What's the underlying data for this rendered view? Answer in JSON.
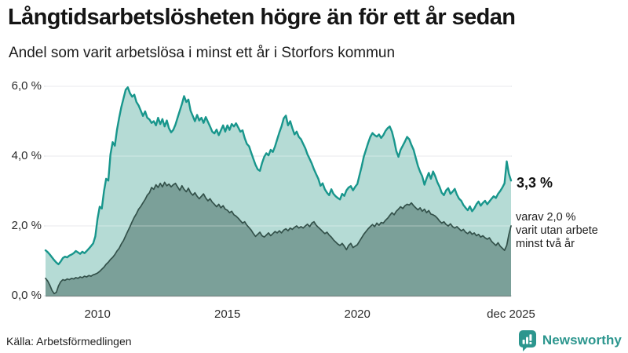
{
  "chart_data": {
    "type": "area",
    "title": "Långtidsarbetslösheten högre än för ett år sedan",
    "subtitle": "Andel som varit arbetslösa i minst ett år i Storfors kommun",
    "unit": "%",
    "x_start_year": 2008,
    "x_end_label": "dec 2025",
    "ylim": [
      0,
      6
    ],
    "grid": true,
    "yticks": [
      {
        "value": 0,
        "label": "0,0 %"
      },
      {
        "value": 2,
        "label": "2,0 %"
      },
      {
        "value": 4,
        "label": "4,0 %"
      },
      {
        "value": 6,
        "label": "6,0 %"
      }
    ],
    "xticks": [
      {
        "label": "2010",
        "month_index": 24
      },
      {
        "label": "2015",
        "month_index": 84
      },
      {
        "label": "2020",
        "month_index": 144
      },
      {
        "label": "dec 2025",
        "month_index": 215
      }
    ],
    "series": [
      {
        "name": "Arbetslösa minst ett år",
        "color": "#18968c",
        "fill": "#b5dbd5",
        "latest_value": 3.3,
        "values": [
          1.3,
          1.25,
          1.18,
          1.1,
          1.02,
          0.95,
          0.9,
          0.98,
          1.08,
          1.12,
          1.1,
          1.15,
          1.18,
          1.22,
          1.28,
          1.24,
          1.2,
          1.26,
          1.22,
          1.28,
          1.35,
          1.42,
          1.5,
          1.7,
          2.2,
          2.55,
          2.5,
          3.0,
          3.35,
          3.3,
          4.05,
          4.4,
          4.3,
          4.75,
          5.1,
          5.4,
          5.65,
          5.9,
          5.97,
          5.8,
          5.7,
          5.76,
          5.55,
          5.45,
          5.3,
          5.15,
          5.28,
          5.1,
          5.05,
          4.95,
          5.0,
          4.88,
          5.1,
          4.92,
          5.06,
          4.85,
          5.02,
          4.8,
          4.68,
          4.75,
          4.9,
          5.1,
          5.3,
          5.5,
          5.72,
          5.55,
          5.62,
          5.3,
          5.15,
          5.0,
          5.18,
          5.02,
          5.1,
          4.95,
          5.12,
          4.98,
          4.85,
          4.7,
          4.65,
          4.76,
          4.6,
          4.74,
          4.88,
          4.7,
          4.88,
          4.75,
          4.92,
          4.85,
          4.94,
          4.82,
          4.7,
          4.74,
          4.52,
          4.35,
          4.28,
          4.1,
          3.92,
          3.75,
          3.62,
          3.58,
          3.8,
          3.98,
          4.08,
          4.02,
          4.18,
          4.12,
          4.28,
          4.48,
          4.68,
          4.85,
          5.08,
          5.16,
          4.88,
          5.0,
          4.8,
          4.62,
          4.7,
          4.55,
          4.48,
          4.35,
          4.22,
          4.05,
          3.92,
          3.78,
          3.62,
          3.48,
          3.35,
          3.15,
          3.22,
          3.05,
          2.95,
          2.88,
          3.05,
          2.92,
          2.85,
          2.8,
          2.76,
          2.92,
          2.86,
          3.02,
          3.1,
          3.14,
          3.02,
          3.12,
          3.2,
          3.45,
          3.7,
          3.98,
          4.18,
          4.38,
          4.55,
          4.66,
          4.6,
          4.56,
          4.62,
          4.52,
          4.6,
          4.72,
          4.8,
          4.85,
          4.7,
          4.45,
          4.15,
          3.98,
          4.18,
          4.3,
          4.42,
          4.55,
          4.48,
          4.32,
          4.18,
          3.95,
          3.72,
          3.55,
          3.42,
          3.18,
          3.36,
          3.52,
          3.35,
          3.56,
          3.42,
          3.25,
          3.12,
          2.95,
          2.88,
          3.02,
          3.08,
          2.92,
          2.98,
          3.06,
          2.9,
          2.78,
          2.72,
          2.6,
          2.52,
          2.45,
          2.56,
          2.42,
          2.5,
          2.62,
          2.7,
          2.58,
          2.66,
          2.72,
          2.62,
          2.7,
          2.78,
          2.85,
          2.8,
          2.92,
          3.0,
          3.1,
          3.22,
          3.85,
          3.5,
          3.3
        ]
      },
      {
        "name": "varav utan arbete minst två år",
        "color": "#33514a",
        "fill": "#7ba099",
        "latest_value": 2.0,
        "values": [
          0.5,
          0.42,
          0.3,
          0.15,
          0.06,
          0.1,
          0.28,
          0.4,
          0.46,
          0.44,
          0.48,
          0.46,
          0.5,
          0.48,
          0.52,
          0.5,
          0.54,
          0.52,
          0.56,
          0.54,
          0.58,
          0.56,
          0.6,
          0.62,
          0.65,
          0.7,
          0.76,
          0.82,
          0.9,
          0.96,
          1.04,
          1.1,
          1.18,
          1.28,
          1.36,
          1.48,
          1.58,
          1.72,
          1.85,
          1.98,
          2.12,
          2.25,
          2.35,
          2.48,
          2.56,
          2.66,
          2.76,
          2.88,
          2.95,
          3.1,
          3.05,
          3.18,
          3.1,
          3.22,
          3.12,
          3.25,
          3.15,
          3.2,
          3.12,
          3.18,
          3.22,
          3.12,
          3.02,
          3.15,
          3.05,
          2.98,
          3.08,
          2.95,
          2.88,
          2.95,
          2.85,
          2.78,
          2.85,
          2.92,
          2.8,
          2.72,
          2.78,
          2.68,
          2.62,
          2.55,
          2.62,
          2.52,
          2.58,
          2.48,
          2.45,
          2.38,
          2.42,
          2.32,
          2.28,
          2.22,
          2.15,
          2.08,
          2.12,
          2.02,
          1.95,
          1.88,
          1.78,
          1.7,
          1.76,
          1.82,
          1.72,
          1.68,
          1.74,
          1.8,
          1.72,
          1.78,
          1.84,
          1.8,
          1.86,
          1.8,
          1.88,
          1.92,
          1.86,
          1.94,
          1.9,
          1.96,
          2.0,
          1.94,
          1.98,
          1.94,
          2.0,
          2.05,
          1.98,
          2.08,
          2.12,
          2.02,
          1.96,
          1.9,
          1.84,
          1.78,
          1.82,
          1.74,
          1.68,
          1.6,
          1.54,
          1.48,
          1.44,
          1.5,
          1.42,
          1.32,
          1.44,
          1.5,
          1.38,
          1.42,
          1.46,
          1.56,
          1.66,
          1.76,
          1.84,
          1.92,
          1.98,
          2.04,
          1.98,
          2.08,
          2.02,
          2.1,
          2.08,
          2.16,
          2.22,
          2.3,
          2.38,
          2.32,
          2.42,
          2.48,
          2.55,
          2.5,
          2.58,
          2.62,
          2.6,
          2.66,
          2.58,
          2.52,
          2.46,
          2.52,
          2.42,
          2.48,
          2.38,
          2.44,
          2.34,
          2.32,
          2.28,
          2.22,
          2.14,
          2.08,
          2.12,
          2.04,
          2.0,
          2.06,
          1.98,
          1.94,
          1.98,
          1.92,
          1.86,
          1.9,
          1.82,
          1.78,
          1.84,
          1.76,
          1.8,
          1.72,
          1.76,
          1.68,
          1.72,
          1.66,
          1.62,
          1.66,
          1.56,
          1.5,
          1.44,
          1.52,
          1.42,
          1.36,
          1.3,
          1.44,
          1.75,
          2.0
        ]
      }
    ],
    "annotations": {
      "latest_total_label": "3,3 %",
      "breakdown_lines": [
        "varav 2,0 %",
        "varit utan arbete",
        "minst två år"
      ]
    }
  },
  "footer": {
    "source": "Källa: Arbetsförmedlingen",
    "brand": "Newsworthy"
  },
  "colors": {
    "background": "#ffffff",
    "grid": "#dadde3",
    "grid_overlay": "rgba(255,255,255,0.38)",
    "baseline": "rgba(44,64,59,0.55)",
    "tick_text": "#2b2b2b",
    "title_text": "#151515",
    "brand_teal": "#2c968e"
  }
}
